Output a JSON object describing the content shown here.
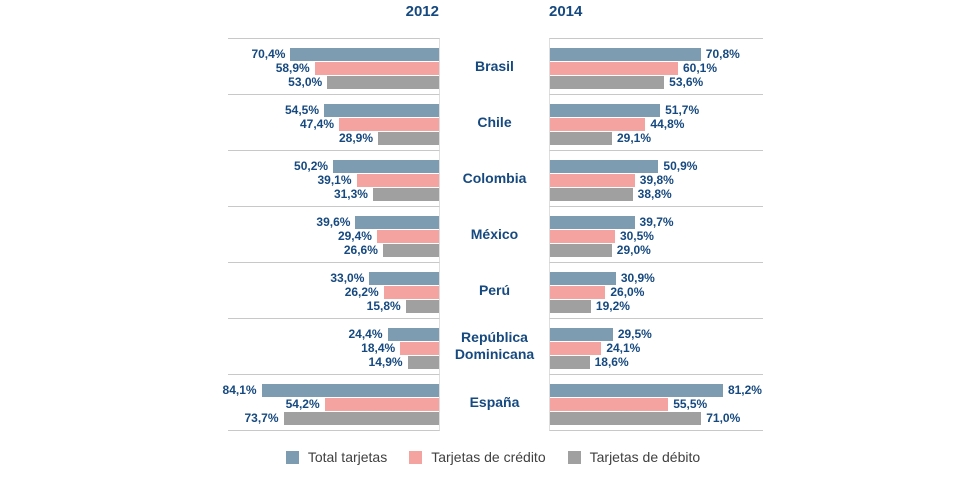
{
  "header": {
    "left_year": "2012",
    "right_year": "2014"
  },
  "legend": {
    "items": [
      {
        "label": "Total tarjetas",
        "color": "#7e9cb1"
      },
      {
        "label": "Tarjetas de crédito",
        "color": "#f5a3a0"
      },
      {
        "label": "Tarjetas de débito",
        "color": "#a0a0a0"
      }
    ]
  },
  "colors": {
    "total_bar": "#7e9cb1",
    "credito_bar": "#f5a3a0",
    "debito_bar": "#a0a0a0",
    "value_text": "#16497f",
    "separator_line": "#c8c8c8",
    "axis_line": "#dedede",
    "legend_text": "#404040"
  },
  "chart_data": {
    "type": "bar",
    "orientation": "horizontal-back-to-back",
    "unit": "percent",
    "xlim": [
      0,
      100
    ],
    "grid": "row-separators-only",
    "legend_position": "bottom-center",
    "group_headers": [
      "2012",
      "2014"
    ],
    "series_names": [
      "Total tarjetas",
      "Tarjetas de crédito",
      "Tarjetas de débito"
    ],
    "series_keys": [
      "total-tarjetas",
      "tarjetas-credito",
      "tarjetas-debito"
    ],
    "series_colors": [
      "#7e9cb1",
      "#f5a3a0",
      "#a0a0a0"
    ],
    "categories": [
      "Brasil",
      "Chile",
      "Colombia",
      "México",
      "Perú",
      "República Dominicana",
      "España"
    ],
    "rows": [
      {
        "country": "Brasil",
        "v2012": [
          70.4,
          58.9,
          53.0
        ],
        "l2012": [
          "70,4%",
          "58,9%",
          "53,0%"
        ],
        "v2014": [
          70.8,
          60.1,
          53.6
        ],
        "l2014": [
          "70,8%",
          "60,1%",
          "53,6%"
        ]
      },
      {
        "country": "Chile",
        "v2012": [
          54.5,
          47.4,
          28.9
        ],
        "l2012": [
          "54,5%",
          "47,4%",
          "28,9%"
        ],
        "v2014": [
          51.7,
          44.8,
          29.1
        ],
        "l2014": [
          "51,7%",
          "44,8%",
          "29,1%"
        ]
      },
      {
        "country": "Colombia",
        "v2012": [
          50.2,
          39.1,
          31.3
        ],
        "l2012": [
          "50,2%",
          "39,1%",
          "31,3%"
        ],
        "v2014": [
          50.9,
          39.8,
          38.8
        ],
        "l2014": [
          "50,9%",
          "39,8%",
          "38,8%"
        ]
      },
      {
        "country": "México",
        "v2012": [
          39.6,
          29.4,
          26.6
        ],
        "l2012": [
          "39,6%",
          "29,4%",
          "26,6%"
        ],
        "v2014": [
          39.7,
          30.5,
          29.0
        ],
        "l2014": [
          "39,7%",
          "30,5%",
          "29,0%"
        ]
      },
      {
        "country": "Perú",
        "v2012": [
          33.0,
          26.2,
          15.8
        ],
        "l2012": [
          "33,0%",
          "26,2%",
          "15,8%"
        ],
        "v2014": [
          30.9,
          26.0,
          19.2
        ],
        "l2014": [
          "30,9%",
          "26,0%",
          "19,2%"
        ]
      },
      {
        "country": "República Dominicana",
        "v2012": [
          24.4,
          18.4,
          14.9
        ],
        "l2012": [
          "24,4%",
          "18,4%",
          "14,9%"
        ],
        "v2014": [
          29.5,
          24.1,
          18.6
        ],
        "l2014": [
          "29,5%",
          "24,1%",
          "18,6%"
        ]
      },
      {
        "country": "España",
        "v2012": [
          84.1,
          54.2,
          73.7
        ],
        "l2012": [
          "84,1%",
          "54,2%",
          "73,7%"
        ],
        "v2014": [
          81.2,
          55.5,
          71.0
        ],
        "l2014": [
          "81,2%",
          "55,5%",
          "71,0%"
        ]
      }
    ]
  }
}
